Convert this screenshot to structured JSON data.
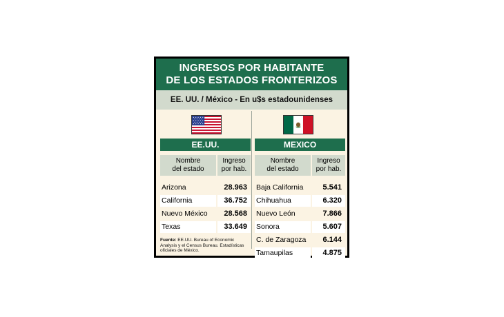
{
  "title": {
    "line1": "INGRESOS POR HABITANTE",
    "line2": "DE LOS ESTADOS FRONTERIZOS"
  },
  "subtitle": "EE. UU. / México - En u$s estadounidenses",
  "columns": {
    "name_line1": "Nombre",
    "name_line2": "del estado",
    "value_line1": "Ingreso",
    "value_line2": "por hab."
  },
  "us": {
    "label": "EE.UU.",
    "flag": "us-flag-icon",
    "rows": [
      {
        "name": "Arizona",
        "value": "28.963"
      },
      {
        "name": "California",
        "value": "36.752"
      },
      {
        "name": "Nuevo México",
        "value": "28.568"
      },
      {
        "name": "Texas",
        "value": "33.649"
      }
    ]
  },
  "mx": {
    "label": "MEXICO",
    "flag": "mexico-flag-icon",
    "rows": [
      {
        "name": "Baja California",
        "value": "5.541"
      },
      {
        "name": "Chihuahua",
        "value": "6.320"
      },
      {
        "name": "Nuevo León",
        "value": "7.866"
      },
      {
        "name": "Sonora",
        "value": "5.607"
      },
      {
        "name": "C. de Zaragoza",
        "value": "6.144"
      },
      {
        "name": "Tamaupilas",
        "value": "4.875"
      }
    ]
  },
  "source": {
    "label": "Fuente:",
    "text": "EE.UU. Bureau of Economic Analysis y el Census Bureau. Estadísticas oficiales de México."
  },
  "colors": {
    "accent_green": "#1e6e4d",
    "header_gray": "#d2dacd",
    "background": "#fbf3e3"
  }
}
